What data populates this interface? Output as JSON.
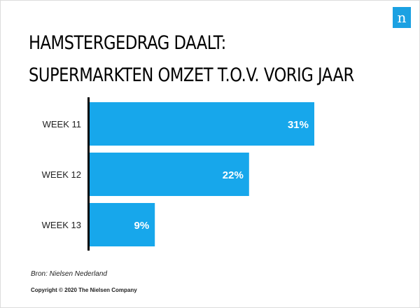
{
  "logo": {
    "letter": "n",
    "color": "#1ba1e2",
    "icon": "nielsen-logo"
  },
  "chart_data": {
    "type": "bar",
    "orientation": "horizontal",
    "title": "HAMSTERGEDRAG DAALT:",
    "subtitle": "SUPERMARKTEN OMZET T.O.V. VORIG JAAR",
    "categories": [
      "WEEK 11",
      "WEEK 12",
      "WEEK 13"
    ],
    "values": [
      31,
      22,
      9
    ],
    "data_labels": [
      "31%",
      "22%",
      "9%"
    ],
    "unit": "%",
    "xlim": [
      0,
      31
    ],
    "grid": false,
    "legend": "none",
    "bar_color": "#17a7eb",
    "label_color": "#ffffff",
    "axis_color": "#000000"
  },
  "footer": {
    "source": "Bron: Nielsen Nederland",
    "copyright": "Copyright © 2020 The Nielsen Company"
  }
}
